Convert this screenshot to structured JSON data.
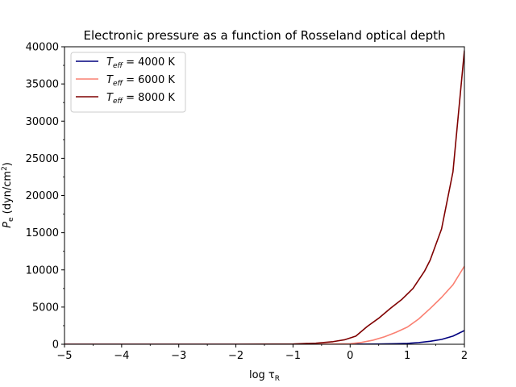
{
  "chart_data": {
    "type": "line",
    "title": "Electronic pressure as a function of Rosseland optical depth",
    "xlabel": {
      "main": "log τ",
      "sub": "R"
    },
    "ylabel": {
      "main": "P",
      "sub": "e",
      "rest": " (dyn/cm",
      "sup": "2",
      "end": ")"
    },
    "xlim": [
      -5,
      2
    ],
    "ylim": [
      0,
      40000
    ],
    "xticks": [
      -5,
      -4,
      -3,
      -2,
      -1,
      0,
      1,
      2
    ],
    "yticks": [
      0,
      5000,
      10000,
      15000,
      20000,
      25000,
      30000,
      35000,
      40000
    ],
    "grid": false,
    "legend_position": "top-left",
    "series": [
      {
        "name": "T_eff = 4000 K",
        "label_parts": {
          "main": "T",
          "sub": "eff",
          "rest": " = 4000 K"
        },
        "color": "#00007f",
        "x": [
          -5,
          -4,
          -3,
          -2,
          -1,
          0,
          0.5,
          0.8,
          1.0,
          1.2,
          1.4,
          1.6,
          1.8,
          2.0
        ],
        "y": [
          0,
          0,
          0,
          0,
          0,
          10,
          30,
          70,
          120,
          230,
          400,
          650,
          1100,
          1850
        ]
      },
      {
        "name": "T_eff = 6000 K",
        "label_parts": {
          "main": "T",
          "sub": "eff",
          "rest": " = 6000 K"
        },
        "color": "#fa8072",
        "x": [
          -5,
          -4,
          -3,
          -2,
          -1,
          -0.5,
          0,
          0.2,
          0.4,
          0.6,
          0.8,
          1.0,
          1.2,
          1.4,
          1.6,
          1.8,
          2.0
        ],
        "y": [
          0,
          0,
          0,
          0,
          5,
          20,
          80,
          250,
          550,
          1000,
          1600,
          2300,
          3400,
          4800,
          6300,
          8000,
          10500
        ]
      },
      {
        "name": "T_eff = 8000 K",
        "label_parts": {
          "main": "T",
          "sub": "eff",
          "rest": " = 8000 K"
        },
        "color": "#7f0000",
        "x": [
          -5,
          -4,
          -3,
          -2,
          -1,
          -0.6,
          -0.3,
          -0.1,
          0.1,
          0.3,
          0.5,
          0.7,
          0.9,
          1.1,
          1.3,
          1.4,
          1.6,
          1.8,
          2.0
        ],
        "y": [
          0,
          0,
          0,
          0,
          40,
          150,
          350,
          600,
          1100,
          2400,
          3500,
          4800,
          6000,
          7500,
          9800,
          11300,
          15500,
          23200,
          39500
        ]
      }
    ]
  }
}
